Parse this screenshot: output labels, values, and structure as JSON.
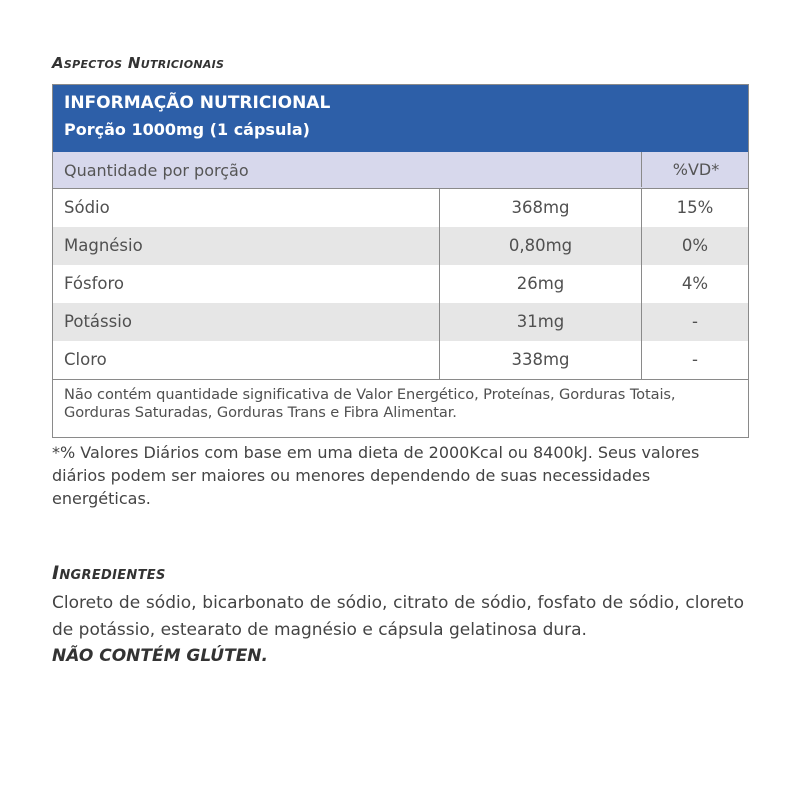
{
  "section_nutrition_title": "Aspectos Nutricionais",
  "table": {
    "header_title": "INFORMAÇÃO NUTRICIONAL",
    "header_portion": "Porção 1000mg (1 cápsula)",
    "col_quantity": "Quantidade por porção",
    "col_vd": "%VD*",
    "rows": [
      {
        "name": "Sódio",
        "amount": "368mg",
        "vd": "15%"
      },
      {
        "name": "Magnésio",
        "amount": "0,80mg",
        "vd": "0%"
      },
      {
        "name": "Fósforo",
        "amount": "26mg",
        "vd": "4%"
      },
      {
        "name": "Potássio",
        "amount": "31mg",
        "vd": "-"
      },
      {
        "name": "Cloro",
        "amount": "338mg",
        "vd": "-"
      }
    ],
    "note": "Não contém quantidade significativa de Valor Energético, Proteínas, Gorduras Totais, Gorduras Saturadas, Gorduras Trans e Fibra Alimentar."
  },
  "footnote": "*% Valores Diários com base em uma dieta de 2000Kcal ou 8400kJ. Seus valores diários podem ser maiores ou menores dependendo de suas necessidades energéticas.",
  "section_ingredients_title": "Ingredientes",
  "ingredients": "Cloreto de sódio, bicarbonato de sódio, citrato de sódio, fosfato de sódio, cloreto de potássio, estearato de magnésio e cápsula gelatinosa dura.",
  "gluten_warning": "NÃO CONTÉM GLÚTEN.",
  "colors": {
    "header_blue": "#2d5fa8",
    "qrow_lavender": "#d7d8ec",
    "alt_row_gray": "#e6e6e6"
  }
}
